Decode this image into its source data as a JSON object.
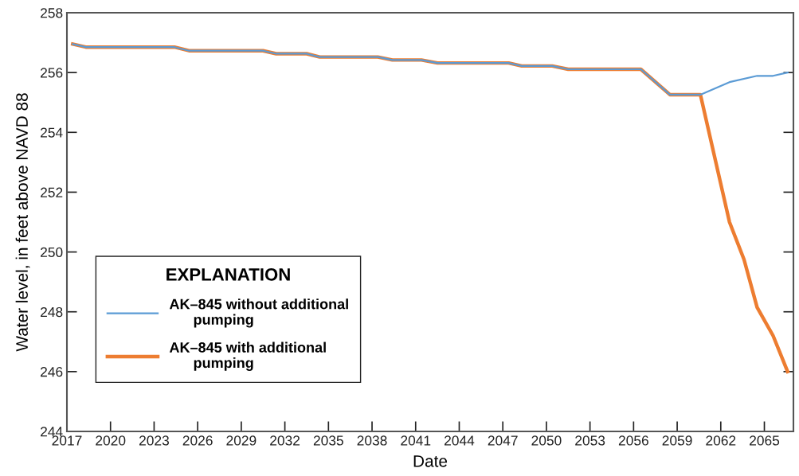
{
  "chart_data": {
    "type": "line",
    "xlabel": "Date",
    "ylabel": "Water level, in feet above NAVD 88",
    "legend_title": "EXPLANATION",
    "legend": "bottom left",
    "grid": false,
    "marker": "none",
    "line_style": "solid",
    "xlim": [
      2017,
      2067
    ],
    "xticks": [
      2017,
      2020,
      2023,
      2026,
      2029,
      2032,
      2035,
      2038,
      2041,
      2044,
      2047,
      2050,
      2053,
      2056,
      2059,
      2062,
      2065
    ],
    "ylim": [
      244,
      258
    ],
    "yticks": [
      244,
      246,
      248,
      250,
      252,
      254,
      256,
      258
    ],
    "series": [
      {
        "name": "AK–845 without additional pumping",
        "color": "#5b9bd5",
        "x": [
          2017.4,
          2018.3,
          2024.4,
          2025.4,
          2030.5,
          2031.4,
          2033.5,
          2034.4,
          2038.4,
          2039.4,
          2041.4,
          2042.5,
          2047.4,
          2048.3,
          2050.4,
          2051.5,
          2056.5,
          2058.5,
          2060.6,
          2062.6,
          2064.5,
          2065.6,
          2066.6
        ],
        "values": [
          256.95,
          256.85,
          256.85,
          256.73,
          256.73,
          256.63,
          256.63,
          256.52,
          256.52,
          256.42,
          256.42,
          256.32,
          256.32,
          256.22,
          256.22,
          256.11,
          256.11,
          255.26,
          255.26,
          255.68,
          255.89,
          255.89,
          256.0
        ]
      },
      {
        "name": "AK–845 with additional pumping",
        "color": "#ed7d31",
        "x": [
          2017.4,
          2018.3,
          2024.4,
          2025.4,
          2030.5,
          2031.4,
          2033.5,
          2034.4,
          2038.4,
          2039.4,
          2041.4,
          2042.5,
          2047.4,
          2048.3,
          2050.4,
          2051.5,
          2056.5,
          2058.5,
          2060.6,
          2062.6,
          2063.6,
          2064.5,
          2065.6,
          2066.6
        ],
        "values": [
          256.95,
          256.85,
          256.85,
          256.73,
          256.73,
          256.63,
          256.63,
          256.52,
          256.52,
          256.42,
          256.42,
          256.32,
          256.32,
          256.22,
          256.22,
          256.11,
          256.11,
          255.26,
          255.26,
          251.0,
          249.75,
          248.15,
          247.2,
          246.0
        ]
      }
    ]
  }
}
